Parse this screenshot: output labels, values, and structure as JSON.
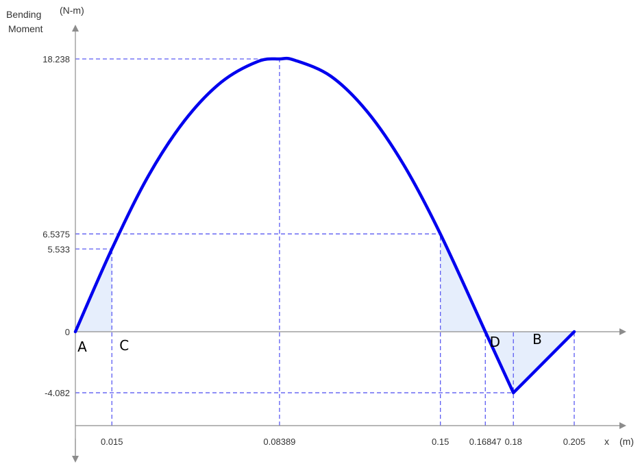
{
  "chart_data": {
    "type": "line",
    "ylabel_line1": "Bending",
    "ylabel_line2": "Moment",
    "yunit": "(N-m)",
    "xlabel": "x",
    "xunit": "(m)",
    "x_ticks": [
      "0.015",
      "0.08389",
      "0.15",
      "0.16847",
      "0.18",
      "0.205"
    ],
    "y_ticks": [
      "18.238",
      "6.5375",
      "5.533",
      "0",
      "-4.082"
    ],
    "xlim": [
      0,
      0.205
    ],
    "ylim": [
      -4.082,
      18.238
    ],
    "grid": false,
    "series": [
      {
        "x": [
          0,
          0.015,
          0.03,
          0.045,
          0.06,
          0.075,
          0.08389,
          0.09,
          0.105,
          0.12,
          0.135,
          0.15,
          0.16847,
          0.18,
          0.205
        ],
        "y": [
          0,
          5.533,
          10.42,
          14.14,
          16.69,
          18.07,
          18.238,
          18.16,
          17.08,
          14.7,
          11.14,
          6.5375,
          0,
          -4.082,
          0
        ]
      }
    ],
    "guides": [
      {
        "x": 0.015,
        "y": 5.533
      },
      {
        "x": 0.08389,
        "y": 18.238
      },
      {
        "x": 0.15,
        "y": 6.5375
      },
      {
        "x": 0.16847,
        "y": 0
      },
      {
        "x": 0.18,
        "y": -4.082
      },
      {
        "x": 0.205,
        "y": 0
      }
    ],
    "shaded_regions": [
      {
        "x_start": 0,
        "x_end": 0.015
      },
      {
        "x_start": 0.15,
        "x_end": 0.16847
      },
      {
        "x_start": 0.16847,
        "x_end": 0.205
      }
    ],
    "point_labels": [
      {
        "text": "A",
        "x": 0
      },
      {
        "text": "C",
        "x": 0.015
      },
      {
        "text": "D",
        "x": 0.16847
      },
      {
        "text": "B",
        "x": 0.205
      }
    ],
    "colors": {
      "curve": "#0000ee",
      "guide": "#5b5bf2",
      "axis": "#8c8c8c",
      "shade": "#e6eefc"
    }
  }
}
